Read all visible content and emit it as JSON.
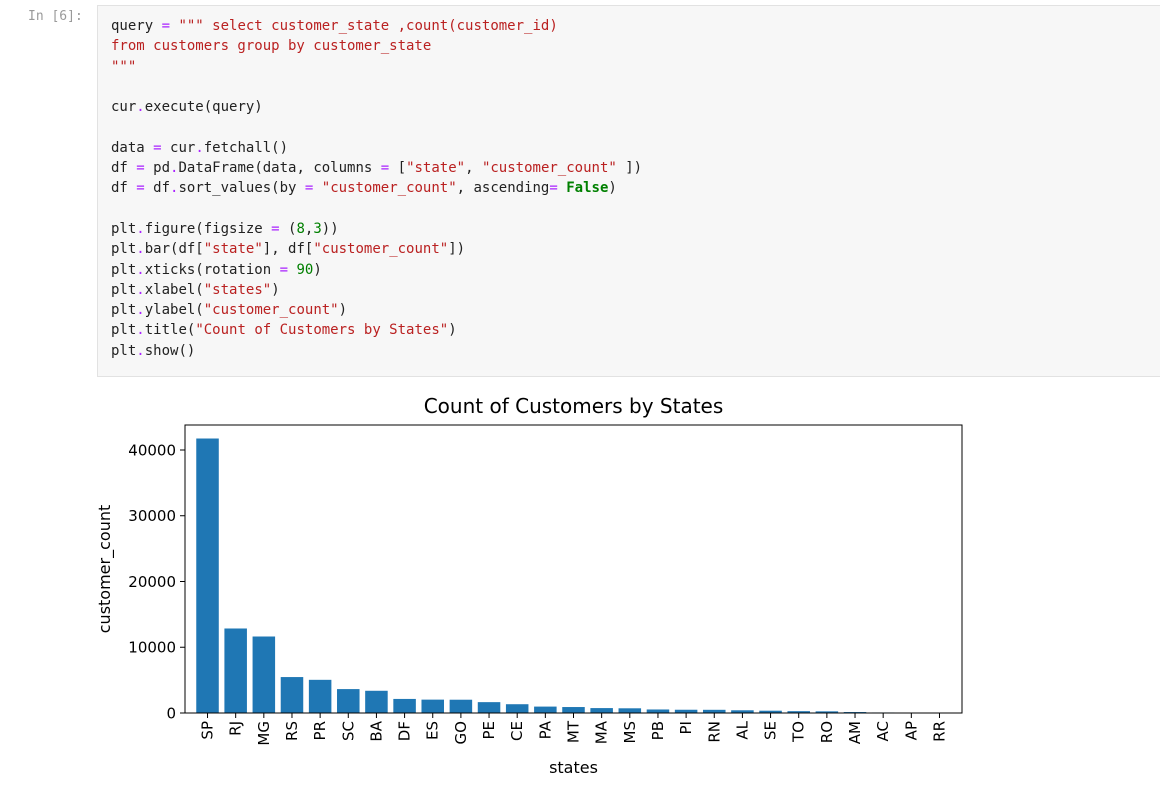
{
  "cell": {
    "prompt": "In [6]:",
    "code_lines": [
      [
        {
          "t": "query ",
          "c": "p"
        },
        {
          "t": "=",
          "c": "op"
        },
        {
          "t": " ",
          "c": "p"
        },
        {
          "t": "\"\"\" select customer_state ,count(customer_id)",
          "c": "str"
        }
      ],
      [
        {
          "t": "from customers group by customer_state",
          "c": "str"
        }
      ],
      [
        {
          "t": "\"\"\"",
          "c": "str"
        }
      ],
      [
        {
          "t": "",
          "c": "p"
        }
      ],
      [
        {
          "t": "cur",
          "c": "p"
        },
        {
          "t": ".",
          "c": "op"
        },
        {
          "t": "execute(query)",
          "c": "p"
        }
      ],
      [
        {
          "t": "",
          "c": "p"
        }
      ],
      [
        {
          "t": "data ",
          "c": "p"
        },
        {
          "t": "=",
          "c": "op"
        },
        {
          "t": " cur",
          "c": "p"
        },
        {
          "t": ".",
          "c": "op"
        },
        {
          "t": "fetchall()",
          "c": "p"
        }
      ],
      [
        {
          "t": "df ",
          "c": "p"
        },
        {
          "t": "=",
          "c": "op"
        },
        {
          "t": " pd",
          "c": "p"
        },
        {
          "t": ".",
          "c": "op"
        },
        {
          "t": "DataFrame(data, columns ",
          "c": "p"
        },
        {
          "t": "=",
          "c": "op"
        },
        {
          "t": " [",
          "c": "p"
        },
        {
          "t": "\"state\"",
          "c": "str"
        },
        {
          "t": ", ",
          "c": "p"
        },
        {
          "t": "\"customer_count\"",
          "c": "str"
        },
        {
          "t": " ])",
          "c": "p"
        }
      ],
      [
        {
          "t": "df ",
          "c": "p"
        },
        {
          "t": "=",
          "c": "op"
        },
        {
          "t": " df",
          "c": "p"
        },
        {
          "t": ".",
          "c": "op"
        },
        {
          "t": "sort_values(by ",
          "c": "p"
        },
        {
          "t": "=",
          "c": "op"
        },
        {
          "t": " ",
          "c": "p"
        },
        {
          "t": "\"customer_count\"",
          "c": "str"
        },
        {
          "t": ", ascending",
          "c": "p"
        },
        {
          "t": "=",
          "c": "op"
        },
        {
          "t": " ",
          "c": "p"
        },
        {
          "t": "False",
          "c": "kw"
        },
        {
          "t": ")",
          "c": "p"
        }
      ],
      [
        {
          "t": "",
          "c": "p"
        }
      ],
      [
        {
          "t": "plt",
          "c": "p"
        },
        {
          "t": ".",
          "c": "op"
        },
        {
          "t": "figure(figsize ",
          "c": "p"
        },
        {
          "t": "=",
          "c": "op"
        },
        {
          "t": " (",
          "c": "p"
        },
        {
          "t": "8",
          "c": "num"
        },
        {
          "t": ",",
          "c": "p"
        },
        {
          "t": "3",
          "c": "num"
        },
        {
          "t": "))",
          "c": "p"
        }
      ],
      [
        {
          "t": "plt",
          "c": "p"
        },
        {
          "t": ".",
          "c": "op"
        },
        {
          "t": "bar(df[",
          "c": "p"
        },
        {
          "t": "\"state\"",
          "c": "str"
        },
        {
          "t": "], df[",
          "c": "p"
        },
        {
          "t": "\"customer_count\"",
          "c": "str"
        },
        {
          "t": "])",
          "c": "p"
        }
      ],
      [
        {
          "t": "plt",
          "c": "p"
        },
        {
          "t": ".",
          "c": "op"
        },
        {
          "t": "xticks(rotation ",
          "c": "p"
        },
        {
          "t": "=",
          "c": "op"
        },
        {
          "t": " ",
          "c": "p"
        },
        {
          "t": "90",
          "c": "num"
        },
        {
          "t": ")",
          "c": "p"
        }
      ],
      [
        {
          "t": "plt",
          "c": "p"
        },
        {
          "t": ".",
          "c": "op"
        },
        {
          "t": "xlabel(",
          "c": "p"
        },
        {
          "t": "\"states\"",
          "c": "str"
        },
        {
          "t": ")",
          "c": "p"
        }
      ],
      [
        {
          "t": "plt",
          "c": "p"
        },
        {
          "t": ".",
          "c": "op"
        },
        {
          "t": "ylabel(",
          "c": "p"
        },
        {
          "t": "\"customer_count\"",
          "c": "str"
        },
        {
          "t": ")",
          "c": "p"
        }
      ],
      [
        {
          "t": "plt",
          "c": "p"
        },
        {
          "t": ".",
          "c": "op"
        },
        {
          "t": "title(",
          "c": "p"
        },
        {
          "t": "\"Count of Customers by States\"",
          "c": "str"
        },
        {
          "t": ")",
          "c": "p"
        }
      ],
      [
        {
          "t": "plt",
          "c": "p"
        },
        {
          "t": ".",
          "c": "op"
        },
        {
          "t": "show()",
          "c": "p"
        }
      ]
    ]
  },
  "colors": {
    "bar": "#1f77b4",
    "string": "#ba2121",
    "operator": "#aa22ff",
    "number": "#008000",
    "keyword": "#008000",
    "plain": "#222222"
  },
  "chart_data": {
    "type": "bar",
    "title": "Count of Customers by States",
    "xlabel": "states",
    "ylabel": "customer_count",
    "categories": [
      "SP",
      "RJ",
      "MG",
      "RS",
      "PR",
      "SC",
      "BA",
      "DF",
      "ES",
      "GO",
      "PE",
      "CE",
      "PA",
      "MT",
      "MA",
      "MS",
      "PB",
      "PI",
      "RN",
      "AL",
      "SE",
      "TO",
      "RO",
      "AM",
      "AC",
      "AP",
      "RR"
    ],
    "values": [
      41746,
      12852,
      11635,
      5466,
      5045,
      3637,
      3380,
      2140,
      2033,
      2020,
      1652,
      1336,
      975,
      907,
      747,
      715,
      536,
      495,
      485,
      413,
      350,
      280,
      253,
      148,
      81,
      68,
      46
    ],
    "ylim": [
      0,
      43800
    ],
    "yticks": [
      0,
      10000,
      20000,
      30000,
      40000
    ],
    "ytick_labels": [
      "0",
      "10000",
      "20000",
      "30000",
      "40000"
    ],
    "grid": false,
    "legend": "none"
  }
}
